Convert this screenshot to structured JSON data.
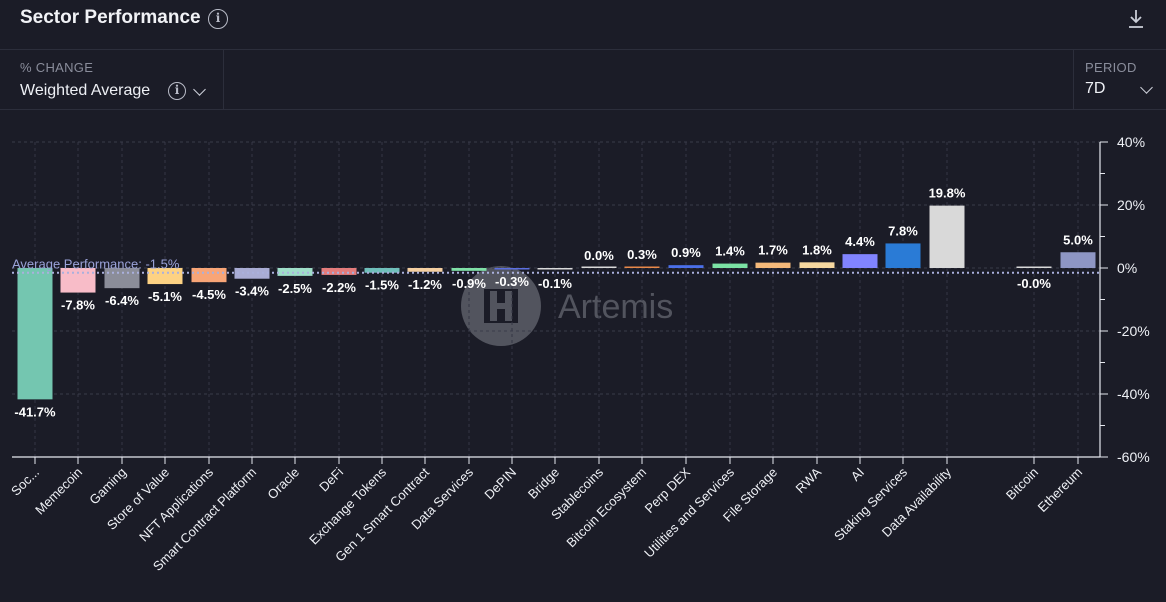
{
  "header": {
    "title": "Sector Performance",
    "info_icon": "info-icon",
    "download_icon": "download-icon"
  },
  "controls": {
    "change_label": "% CHANGE",
    "change_value": "Weighted Average",
    "period_label": "PERIOD",
    "period_value": "7D"
  },
  "watermark": {
    "text": "Artemis"
  },
  "colors": {
    "background": "#1b1c27",
    "average_line": "#9aa2d8",
    "grid": "#3a3c4a"
  },
  "chart_data": {
    "type": "bar",
    "categories": [
      "Soc...",
      "Memecoin",
      "Gaming",
      "Store of Value",
      "NFT Applications",
      "Smart Contract Platform",
      "Oracle",
      "DeFi",
      "Exchange Tokens",
      "Gen 1 Smart Contract",
      "Data Services",
      "DePIN",
      "Bridge",
      "Stablecoins",
      "Bitcoin Ecosystem",
      "Perp DEX",
      "Utilities and Services",
      "File Storage",
      "RWA",
      "AI",
      "Staking Services",
      "Data Availability",
      "Bitcoin",
      "Ethereum"
    ],
    "values": [
      -41.7,
      -7.8,
      -6.4,
      -5.1,
      -4.5,
      -3.4,
      -2.5,
      -2.2,
      -1.5,
      -1.2,
      -0.9,
      -0.3,
      -0.1,
      0.0,
      0.3,
      0.9,
      1.4,
      1.7,
      1.8,
      4.4,
      7.8,
      19.8,
      -0.0,
      5.0
    ],
    "labels": [
      "-41.7%",
      "-7.8%",
      "-6.4%",
      "-5.1%",
      "-4.5%",
      "-3.4%",
      "-2.5%",
      "-2.2%",
      "-1.5%",
      "-1.2%",
      "-0.9%",
      "-0.3%",
      "-0.1%",
      "0.0%",
      "0.3%",
      "0.9%",
      "1.4%",
      "1.7%",
      "1.8%",
      "4.4%",
      "7.8%",
      "19.8%",
      "-0.0%",
      "5.0%"
    ],
    "bar_colors": [
      "#74c6b0",
      "#f8bcc8",
      "#8b8d99",
      "#fdd283",
      "#f8a577",
      "#a9acd4",
      "#9fdec9",
      "#e47c7c",
      "#6fbfbb",
      "#f5cfa1",
      "#7fe0a6",
      "#5c6fe0",
      "#d9d9d9",
      "#d9d9d9",
      "#e8894a",
      "#4b6fe8",
      "#7be2a4",
      "#f5b97a",
      "#f6d8a0",
      "#8184ff",
      "#2a7bd6",
      "#d9d9d9",
      "#d9d9d9",
      "#8e96c4"
    ],
    "yticks": [
      40,
      20,
      0,
      -20,
      -40,
      -60
    ],
    "ytick_labels": [
      "40%",
      "20%",
      "0%",
      "-20%",
      "-40%",
      "-60%"
    ],
    "ylim": [
      -60,
      40
    ],
    "average": {
      "label": "Average Performance: -1.5%",
      "value": -1.5
    },
    "grid": true,
    "xlabel": "",
    "ylabel": ""
  }
}
